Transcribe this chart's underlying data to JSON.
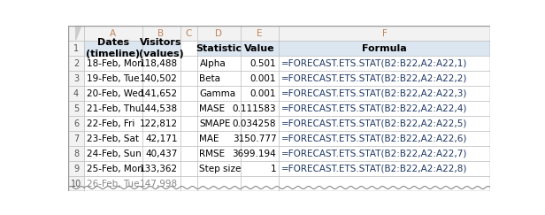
{
  "header_col_bg": "#dce6f1",
  "header_row_bg": "#e8edf4",
  "row_num_bg": "#f2f2f2",
  "white_bg": "#ffffff",
  "grid_color": "#b8b8b8",
  "col_letter_color": "#c0845a",
  "formula_color": "#1f3864",
  "black": "#000000",
  "gray_text": "#888888",
  "col_bounds": [
    0.0,
    0.038,
    0.175,
    0.265,
    0.305,
    0.408,
    0.498,
    1.0
  ],
  "total_rows": 11,
  "col_letters": [
    "A",
    "B",
    "C",
    "D",
    "E",
    "F"
  ],
  "rows": [
    {
      "row": "1",
      "A": "Dates\n(timeline)",
      "B": "Visitors\n(values)",
      "C": "",
      "D": "Statistic",
      "E": "Value",
      "F": "Formula",
      "is_header": true
    },
    {
      "row": "2",
      "A": "18-Feb, Mon",
      "B": "118,488",
      "C": "",
      "D": "Alpha",
      "E": "0.501",
      "F": "=FORECAST.ETS.STAT(B2:B22,A2:A22,1)",
      "is_header": false
    },
    {
      "row": "3",
      "A": "19-Feb, Tue",
      "B": "140,502",
      "C": "",
      "D": "Beta",
      "E": "0.001",
      "F": "=FORECAST.ETS.STAT(B2:B22,A2:A22,2)",
      "is_header": false
    },
    {
      "row": "4",
      "A": "20-Feb, Wed",
      "B": "141,652",
      "C": "",
      "D": "Gamma",
      "E": "0.001",
      "F": "=FORECAST.ETS.STAT(B2:B22,A2:A22,3)",
      "is_header": false
    },
    {
      "row": "5",
      "A": "21-Feb, Thu",
      "B": "144,538",
      "C": "",
      "D": "MASE",
      "E": "0.111583",
      "F": "=FORECAST.ETS.STAT(B2:B22,A2:A22,4)",
      "is_header": false
    },
    {
      "row": "6",
      "A": "22-Feb, Fri",
      "B": "122,812",
      "C": "",
      "D": "SMAPE",
      "E": "0.034258",
      "F": "=FORECAST.ETS.STAT(B2:B22,A2:A22,5)",
      "is_header": false
    },
    {
      "row": "7",
      "A": "23-Feb, Sat",
      "B": "42,171",
      "C": "",
      "D": "MAE",
      "E": "3150.777",
      "F": "=FORECAST.ETS.STAT(B2:B22,A2:A22,6)",
      "is_header": false
    },
    {
      "row": "8",
      "A": "24-Feb, Sun",
      "B": "40,437",
      "C": "",
      "D": "RMSE",
      "E": "3699.194",
      "F": "=FORECAST.ETS.STAT(B2:B22,A2:A22,7)",
      "is_header": false
    },
    {
      "row": "9",
      "A": "25-Feb, Mon",
      "B": "133,362",
      "C": "",
      "D": "Step size",
      "E": "1",
      "F": "=FORECAST.ETS.STAT(B2:B22,A2:A22,8)",
      "is_header": false
    },
    {
      "row": "10",
      "A": "26-Feb, Tue",
      "B": "147,998",
      "C": "",
      "D": "",
      "E": "",
      "F": "",
      "is_header": false,
      "partial": true
    }
  ]
}
